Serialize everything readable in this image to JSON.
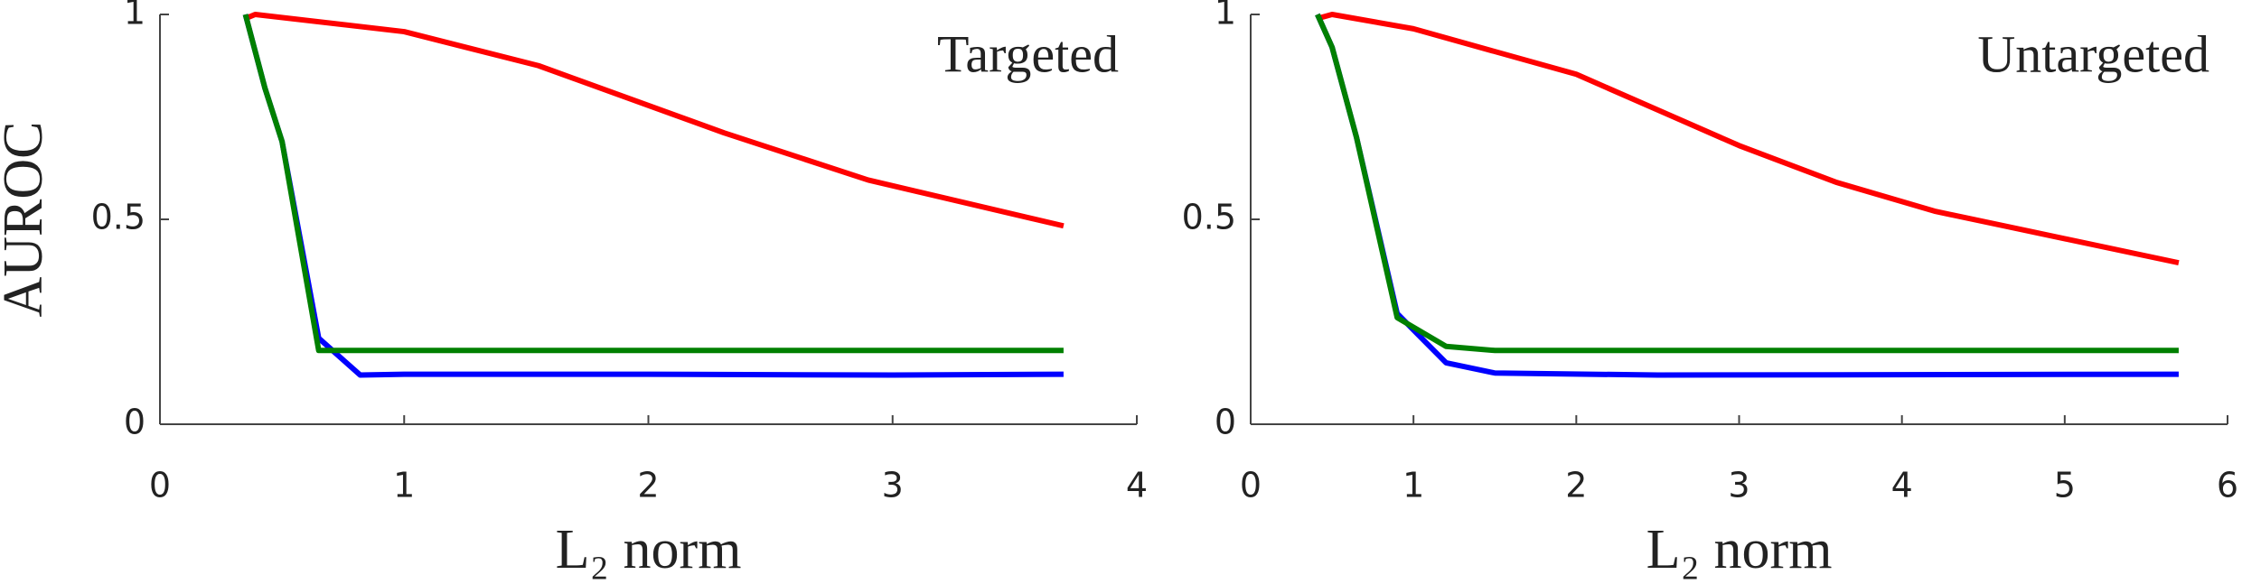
{
  "chart_data": [
    {
      "type": "line",
      "ylabel": "AUROC",
      "xlabel": "L₂ norm",
      "annotation": "Targeted",
      "xlim": [
        0,
        4
      ],
      "xticks": [
        0,
        1,
        2,
        3,
        4
      ],
      "ylim": [
        0,
        1
      ],
      "yticks": [
        0,
        0.5,
        1
      ],
      "grid": false,
      "series": [
        {
          "color": "#ff0000",
          "x": [
            0.35,
            0.39,
            1.0,
            1.55,
            2.31,
            2.9,
            3.7
          ],
          "values": [
            0.99,
            1.0,
            0.958,
            0.875,
            0.711,
            0.596,
            0.484
          ]
        },
        {
          "color": "#0000ff",
          "x": [
            0.35,
            0.43,
            0.5,
            0.65,
            0.82,
            1.0,
            2.0,
            3.0,
            3.7
          ],
          "values": [
            1.0,
            0.82,
            0.69,
            0.21,
            0.12,
            0.122,
            0.122,
            0.12,
            0.122
          ]
        },
        {
          "color": "#008000",
          "x": [
            0.35,
            0.43,
            0.5,
            0.65,
            1.0,
            2.0,
            3.0,
            3.7
          ],
          "values": [
            1.0,
            0.82,
            0.69,
            0.18,
            0.18,
            0.18,
            0.18,
            0.18
          ]
        }
      ]
    },
    {
      "type": "line",
      "xlabel": "L₂ norm",
      "annotation": "Untargeted",
      "xlim": [
        0,
        6
      ],
      "xticks": [
        0,
        1,
        2,
        3,
        4,
        5,
        6
      ],
      "ylim": [
        0,
        1
      ],
      "yticks": [
        0,
        0.5,
        1
      ],
      "grid": false,
      "series": [
        {
          "color": "#ff0000",
          "x": [
            0.41,
            0.5,
            1.0,
            2.0,
            3.0,
            3.6,
            4.2,
            5.7
          ],
          "values": [
            0.99,
            1.0,
            0.965,
            0.854,
            0.68,
            0.59,
            0.52,
            0.394
          ]
        },
        {
          "color": "#0000ff",
          "x": [
            0.41,
            0.5,
            0.65,
            0.9,
            1.2,
            1.5,
            2.5,
            5.7
          ],
          "values": [
            1.0,
            0.92,
            0.7,
            0.27,
            0.15,
            0.125,
            0.12,
            0.122
          ]
        },
        {
          "color": "#008000",
          "x": [
            0.41,
            0.5,
            0.65,
            0.9,
            1.2,
            1.5,
            2.5,
            5.7
          ],
          "values": [
            1.0,
            0.92,
            0.7,
            0.26,
            0.19,
            0.18,
            0.18,
            0.18
          ]
        }
      ]
    }
  ]
}
